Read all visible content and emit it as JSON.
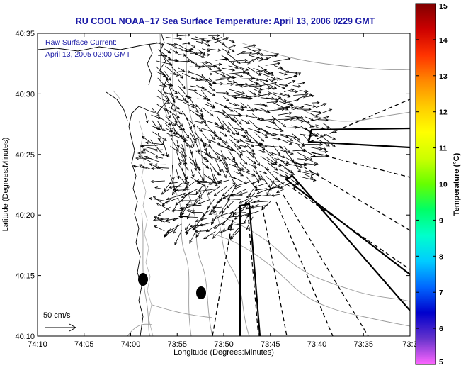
{
  "title": "RU COOL  NOAA−17  Sea Surface Temperature:  April 13, 2006 0229 GMT",
  "legend": {
    "line1": "Raw Surface Current:",
    "line2": "April 13, 2005 02:00 GMT",
    "scale_label": "50 cm/s"
  },
  "axes": {
    "xlabel": "Longitude (Degrees:Minutes)",
    "ylabel": "Latitude (Degrees:Minutes)",
    "xticks": [
      "74:10",
      "74:05",
      "74:00",
      "73:55",
      "73:50",
      "73:45",
      "73:40",
      "73:35",
      "73:3"
    ],
    "yticks": [
      "40:35",
      "40:30",
      "40:25",
      "40:20",
      "40:15",
      "40:10"
    ]
  },
  "colorbar": {
    "label": "Temperature (°C)",
    "ticks": [
      "15",
      "14",
      "13",
      "12",
      "11",
      "10",
      "9",
      "8",
      "7",
      "6",
      "5"
    ],
    "min": 5,
    "max": 15,
    "colors": [
      "#ff66ff",
      "#6633cc",
      "#0000cc",
      "#0066ff",
      "#00ccff",
      "#00ffcc",
      "#00ff66",
      "#66ff00",
      "#ccff00",
      "#ffff00",
      "#ffcc00",
      "#ff8800",
      "#ff3300",
      "#cc0000",
      "#800000"
    ]
  }
}
